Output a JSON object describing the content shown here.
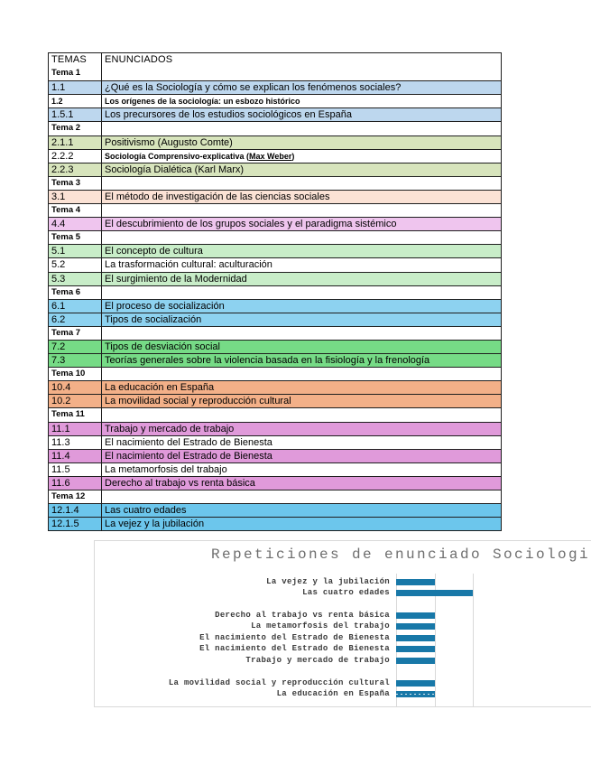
{
  "table": {
    "headers": {
      "temas": "TEMAS",
      "enunciados": "ENUNCIADOS"
    },
    "rows": [
      {
        "num": "Tema 1",
        "text": "",
        "type": "tema"
      },
      {
        "num": "1.1",
        "text": "¿Qué es la Sociología y cómo se explican los fenómenos sociales?",
        "bg": "#BDD7EE"
      },
      {
        "num": "1.2",
        "text": "Los orígenes de la sociología: un esbozo histórico",
        "small": true,
        "num_small": true
      },
      {
        "num": "1.5.1",
        "text": "Los precursores de los estudios sociológicos en España",
        "bg": "#BDD7EE"
      },
      {
        "num": "Tema 2",
        "text": "",
        "type": "tema"
      },
      {
        "num": "2.1.1",
        "text": "Positivismo (Augusto Comte)",
        "bg": "#D7E4BC"
      },
      {
        "num": "2.2.2",
        "text": "Sociología Comprensivo-explicativa (Max Weber)",
        "small": true,
        "underline_part": "Max Weber"
      },
      {
        "num": "2.2.3",
        "text": "Sociología Dialética (Karl Marx)",
        "bg": "#D7E4BC"
      },
      {
        "num": "Tema 3",
        "text": "",
        "type": "tema"
      },
      {
        "num": "3.1",
        "text": "El método de investigación de las ciencias sociales",
        "bg": "#FBE2D5"
      },
      {
        "num": "Tema 4",
        "text": "",
        "type": "tema"
      },
      {
        "num": "4.4",
        "text": "El descubrimiento de los grupos sociales y el paradigma sistémico",
        "bg": "#EFC5EE"
      },
      {
        "num": "Tema 5",
        "text": "",
        "type": "tema"
      },
      {
        "num": "5.1",
        "text": "El concepto de cultura",
        "bg": "#C8EDC8"
      },
      {
        "num": "5.2",
        "text": "La trasformación cultural: aculturación"
      },
      {
        "num": "5.3",
        "text": "El surgimiento de la Modernidad",
        "bg": "#C8EDC8"
      },
      {
        "num": "Tema 6",
        "text": "",
        "type": "tema"
      },
      {
        "num": "6.1",
        "text": "El proceso de socialización",
        "bg": "#8DD2F0"
      },
      {
        "num": "6.2",
        "text": "Tipos de socialización",
        "bg": "#8DD2F0"
      },
      {
        "num": "Tema 7",
        "text": "",
        "type": "tema"
      },
      {
        "num": "7.2",
        "text": "Tipos de desviación social",
        "bg": "#76DB86"
      },
      {
        "num": "7.3",
        "text": "Teorías generales sobre la violencia basada en la fisiología y la frenología",
        "bg": "#76DB86"
      },
      {
        "num": "Tema 10",
        "text": "",
        "type": "tema"
      },
      {
        "num": "10.4",
        "text": "La educación en España",
        "bg": "#F3B088"
      },
      {
        "num": "10.2",
        "text": "La movilidad social y reproducción cultural",
        "bg": "#F3B088"
      },
      {
        "num": "Tema 11",
        "text": "",
        "type": "tema"
      },
      {
        "num": "11.1",
        "text": "Trabajo y mercado de trabajo",
        "bg": "#E09ADA"
      },
      {
        "num": "11.3",
        "text": "El nacimiento del Estrado de Bienesta"
      },
      {
        "num": "11.4",
        "text": "El nacimiento del Estrado de Bienesta",
        "bg": "#E09ADA"
      },
      {
        "num": "11.5",
        "text": "La metamorfosis del trabajo"
      },
      {
        "num": "11.6",
        "text": "Derecho al trabajo vs renta básica",
        "bg": "#E09ADA"
      },
      {
        "num": "Tema 12",
        "text": "",
        "type": "tema"
      },
      {
        "num": "12.1.4",
        "text": "Las cuatro edades",
        "bg": "#6CC6EC"
      },
      {
        "num": "12.1.5",
        "text": "La vejez y la jubilación",
        "bg": "#6CC6EC"
      }
    ]
  },
  "chart_data": {
    "type": "bar",
    "orientation": "horizontal",
    "title": "Repeticiones de enunciado Sociologi",
    "title_truncated": true,
    "categories": [
      "La vejez y la jubilación",
      "Las cuatro edades",
      "",
      "Derecho al trabajo vs renta básica",
      "La metamorfosis del trabajo",
      "El nacimiento del Estrado de Bienesta",
      "El nacimiento del Estrado de Bienesta",
      "Trabajo y mercado de trabajo",
      "",
      "La movilidad social y reproducción cultural",
      "La educación en España"
    ],
    "values": [
      1,
      2,
      null,
      1,
      1,
      1,
      1,
      1,
      null,
      1,
      1
    ],
    "xlim": [
      0,
      2
    ],
    "gridline_interval": 1,
    "grid": true,
    "legend": "none",
    "bar_color": "#1878A8",
    "dotted_bar_category": "La educación en España"
  },
  "colors": {
    "border_dark": "#1F1F1F",
    "chart_frame": "#D9D9D9",
    "title_gray": "#6E6E6E",
    "label_gray": "#3A3A3A",
    "row_blue": "#BDD7EE",
    "row_olive": "#D7E4BC",
    "row_peach": "#FBE2D5",
    "row_violet": "#EFC5EE",
    "row_mint": "#C8EDC8",
    "row_sky": "#8DD2F0",
    "row_green": "#76DB86",
    "row_salmon": "#F3B088",
    "row_orchid": "#E09ADA",
    "row_cyan": "#6CC6EC"
  }
}
